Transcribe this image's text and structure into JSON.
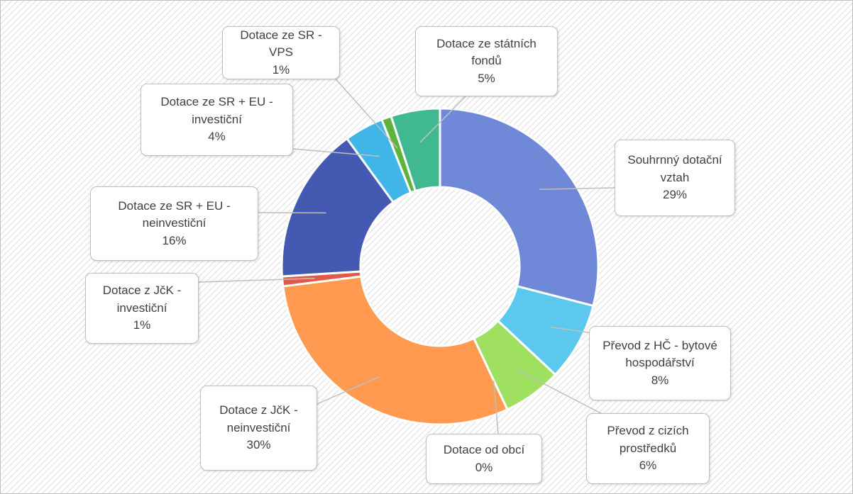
{
  "chart_data": {
    "type": "donut",
    "categories": [
      "Souhrnný dotační vztah",
      "Převod z HČ - bytové hospodářství",
      "Převod z cizích prostředků",
      "Dotace od obcí",
      "Dotace z JčK - neinvestiční",
      "Dotace z JčK - investiční",
      "Dotace ze SR + EU - neinvestiční",
      "Dotace ze SR + EU - investiční",
      "Dotace ze SR - VPS",
      "Dotace ze státních fondů"
    ],
    "values": [
      29,
      8,
      6,
      0,
      30,
      1,
      16,
      4,
      1,
      5
    ],
    "value_labels": [
      "29%",
      "8%",
      "6%",
      "0%",
      "30%",
      "1%",
      "16%",
      "4%",
      "1%",
      "5%"
    ],
    "colors": [
      "#7088d8",
      "#5cc8ee",
      "#a0e060",
      "#f2d340",
      "#ff9a50",
      "#e05a4a",
      "#4459b2",
      "#40b6e8",
      "#5db33b",
      "#40b892"
    ]
  }
}
